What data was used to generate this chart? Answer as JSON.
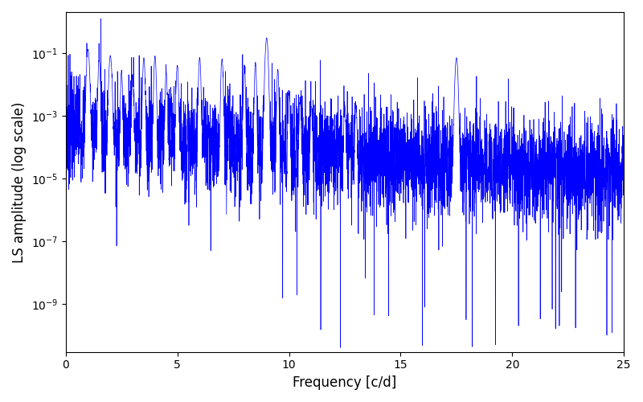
{
  "title": "",
  "xlabel": "Frequency [c/d]",
  "ylabel": "LS amplitude (log scale)",
  "xlim": [
    0,
    25
  ],
  "color": "#0000ff",
  "background_color": "#ffffff",
  "figsize": [
    8.0,
    5.0
  ],
  "dpi": 100,
  "seed": 7,
  "n_points": 5000,
  "freq_max": 25.0,
  "yticks": [
    1e-09,
    1e-07,
    1e-05,
    0.001,
    0.1
  ],
  "xticks": [
    0,
    5,
    10,
    15,
    20,
    25
  ],
  "ylim": [
    3e-11,
    2.0
  ]
}
